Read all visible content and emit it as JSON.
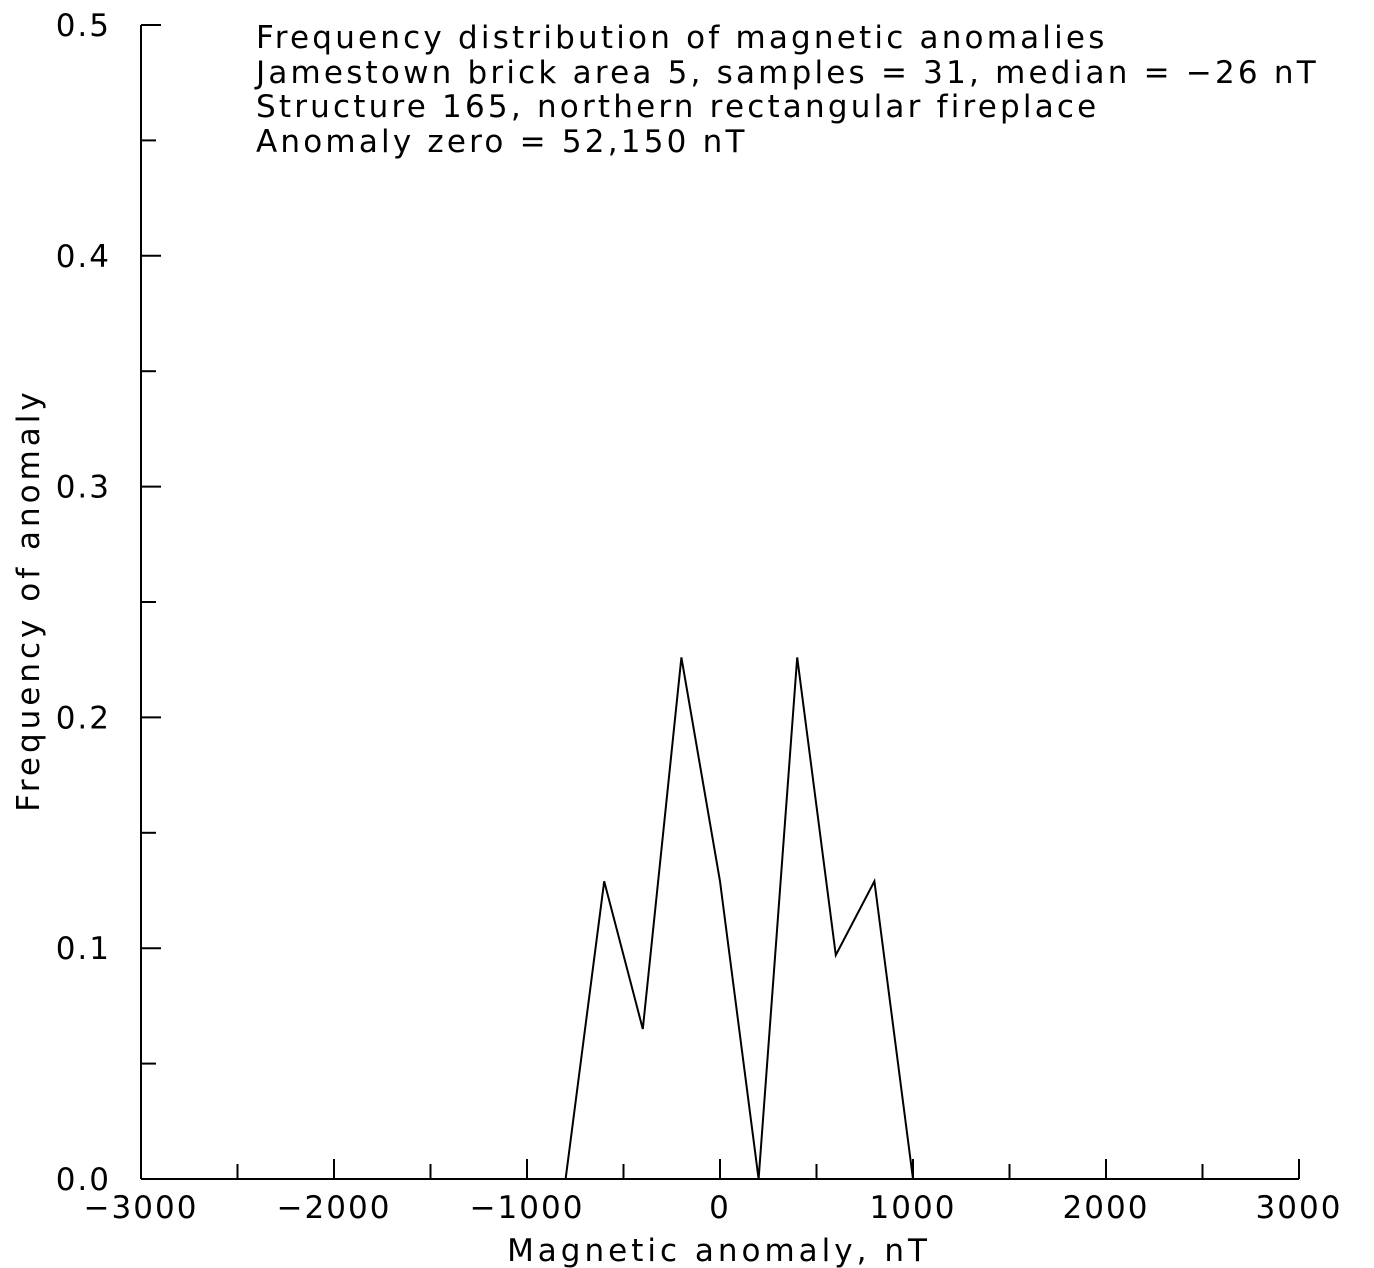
{
  "chart_data": {
    "type": "line",
    "title_lines": [
      "Frequency distribution of magnetic anomalies",
      "Jamestown brick area 5, samples = 31, median = −26 nT",
      "Structure 165, northern rectangular fireplace",
      "Anomaly zero = 52,150 nT"
    ],
    "xlabel": "Magnetic anomaly, nT",
    "ylabel": "Frequency of anomaly",
    "xlim": [
      -3000,
      3000
    ],
    "ylim": [
      0,
      0.5
    ],
    "x_ticks": [
      -3000,
      -2000,
      -1000,
      0,
      1000,
      2000,
      3000
    ],
    "x_tick_labels": [
      "−3000",
      "−2000",
      "−1000",
      "0",
      "1000",
      "2000",
      "3000"
    ],
    "x_minor_ticks": [
      -2500,
      -1500,
      -500,
      500,
      1500,
      2500
    ],
    "y_ticks": [
      0.0,
      0.1,
      0.2,
      0.3,
      0.4,
      0.5
    ],
    "y_tick_labels": [
      "0.0",
      "0.1",
      "0.2",
      "0.3",
      "0.4",
      "0.5"
    ],
    "y_minor_ticks": [
      0.05,
      0.15,
      0.25,
      0.35,
      0.45
    ],
    "grid": false,
    "series": [
      {
        "x": [
          -3000,
          -800,
          -600,
          -400,
          -200,
          0,
          200,
          400,
          600,
          800,
          1000,
          3000
        ],
        "y": [
          0,
          0,
          0.129,
          0.065,
          0.226,
          0.129,
          0,
          0.226,
          0.097,
          0.129,
          0,
          0
        ]
      }
    ]
  }
}
